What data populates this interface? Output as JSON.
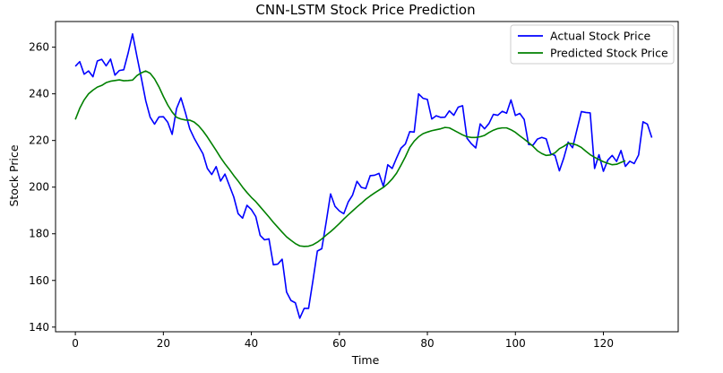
{
  "chart_data": {
    "type": "line",
    "title": "CNN-LSTM Stock Price Prediction",
    "xlabel": "Time",
    "ylabel": "Stock Price",
    "xlim": [
      -4.5,
      137
    ],
    "ylim": [
      138,
      271
    ],
    "xticks": [
      0,
      20,
      40,
      60,
      80,
      100,
      120
    ],
    "yticks": [
      140,
      160,
      180,
      200,
      220,
      240,
      260
    ],
    "grid": false,
    "legend_position": "top-right",
    "series": [
      {
        "name": "Actual Stock Price",
        "color": "#0000ff",
        "x_start": 0,
        "values": [
          251.8,
          253.8,
          248.4,
          249.8,
          247.3,
          254.1,
          254.8,
          252.0,
          254.9,
          248.0,
          250.0,
          250.3,
          257.5,
          265.7,
          256.0,
          246.7,
          237.0,
          230.0,
          227.0,
          230.1,
          230.2,
          227.8,
          222.6,
          233.7,
          238.3,
          232.0,
          225.0,
          221.0,
          217.6,
          214.3,
          208.0,
          205.4,
          208.8,
          202.6,
          205.6,
          200.7,
          195.8,
          188.6,
          186.7,
          192.2,
          190.4,
          187.4,
          179.3,
          177.4,
          177.8,
          166.7,
          167.0,
          169.1,
          155.0,
          151.4,
          150.4,
          143.8,
          148.0,
          148.0,
          160.0,
          172.6,
          173.6,
          185.0,
          197.1,
          191.8,
          189.8,
          188.6,
          193.6,
          196.6,
          202.5,
          199.9,
          199.4,
          204.9,
          205.1,
          205.9,
          200.3,
          209.6,
          208.0,
          212.5,
          216.7,
          218.5,
          223.8,
          223.6,
          240.0,
          238.1,
          237.6,
          229.2,
          230.6,
          229.9,
          230.0,
          232.7,
          230.8,
          234.3,
          234.9,
          221.0,
          218.6,
          216.8,
          227.1,
          225.0,
          227.3,
          231.2,
          230.8,
          232.5,
          231.7,
          237.4,
          230.7,
          231.6,
          229.0,
          218.3,
          218.0,
          220.6,
          221.3,
          220.7,
          214.4,
          213.6,
          207.0,
          212.5,
          219.3,
          216.9,
          224.7,
          232.4,
          232.0,
          231.8,
          208.0,
          213.9,
          206.8,
          211.6,
          213.6,
          211.0,
          215.7,
          208.9,
          211.1,
          210.1,
          213.8,
          228.0,
          227.0,
          221.2
        ]
      },
      {
        "name": "Predicted Stock Price",
        "color": "#008000",
        "x_start": 0,
        "values": [
          229.0,
          233.8,
          237.4,
          240.0,
          241.6,
          242.9,
          243.6,
          244.8,
          245.4,
          245.7,
          246.0,
          245.6,
          245.7,
          245.9,
          247.8,
          249.0,
          249.8,
          248.8,
          246.4,
          243.0,
          238.9,
          235.2,
          232.2,
          229.9,
          229.2,
          228.8,
          228.7,
          227.9,
          226.3,
          224.1,
          221.5,
          218.6,
          215.7,
          212.7,
          210.0,
          207.6,
          205.0,
          202.6,
          200.0,
          197.7,
          195.6,
          193.8,
          191.6,
          189.4,
          187.2,
          184.9,
          182.8,
          180.7,
          178.7,
          177.2,
          175.8,
          174.8,
          174.6,
          174.7,
          175.3,
          176.4,
          177.8,
          179.4,
          180.9,
          182.6,
          184.4,
          186.3,
          188.1,
          189.8,
          191.5,
          193.1,
          194.8,
          196.2,
          197.5,
          198.7,
          199.9,
          201.5,
          203.5,
          206.0,
          209.4,
          213.0,
          217.1,
          219.7,
          221.6,
          222.9,
          223.6,
          224.2,
          224.6,
          225.0,
          225.6,
          225.4,
          224.4,
          223.4,
          222.4,
          221.6,
          221.3,
          221.3,
          221.6,
          222.2,
          223.4,
          224.4,
          225.1,
          225.4,
          225.4,
          224.6,
          223.5,
          222.0,
          220.6,
          219.1,
          217.5,
          215.6,
          214.4,
          213.6,
          213.8,
          214.7,
          216.5,
          217.5,
          218.8,
          218.6,
          218.0,
          217.0,
          215.4,
          213.9,
          212.8,
          211.8,
          210.9,
          210.2,
          209.6,
          209.8,
          210.6,
          211.3
        ]
      }
    ]
  }
}
